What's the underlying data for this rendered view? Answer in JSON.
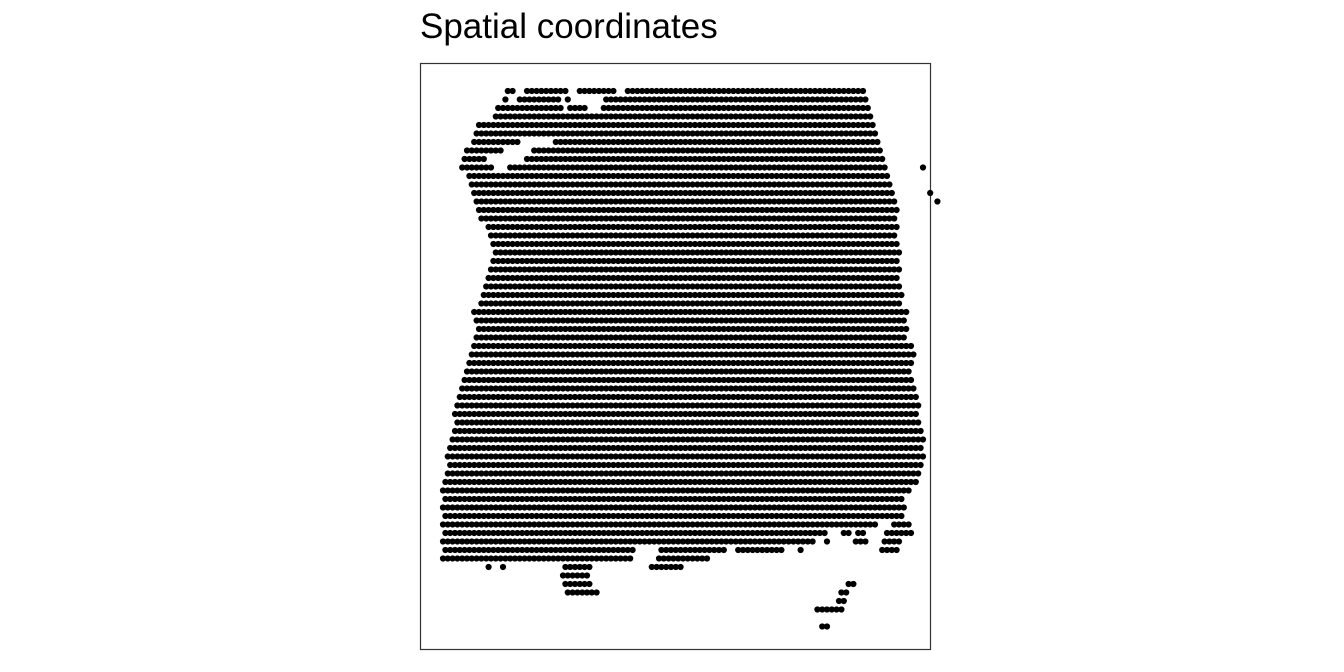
{
  "colors": {
    "point": "#000000",
    "panel_border": "#333333",
    "background": "#ffffff"
  },
  "chart_data": {
    "type": "scatter",
    "title": "Spatial coordinates",
    "xlabel": "",
    "ylabel": "",
    "axes": "none",
    "grid": false,
    "legend": "none",
    "layout": "hexagonal spot grid",
    "rows": [
      {
        "y": 0,
        "x_ranges": [
          [
            13.5,
            14.5
          ],
          [
            17.5,
            25.5
          ],
          [
            28.5,
            35.5
          ],
          [
            38.5,
            87.5
          ]
        ]
      },
      {
        "y": 1,
        "x_ranges": [
          [
            13,
            13
          ],
          [
            16,
            24
          ],
          [
            26,
            26
          ],
          [
            34,
            88
          ]
        ]
      },
      {
        "y": 2,
        "x_ranges": [
          [
            11.5,
            24.5
          ],
          [
            26.5,
            29.5
          ],
          [
            33.5,
            88.5
          ]
        ]
      },
      {
        "y": 3,
        "x_ranges": [
          [
            11,
            89
          ]
        ]
      },
      {
        "y": 4,
        "x_ranges": [
          [
            7.5,
            89.5
          ]
        ]
      },
      {
        "y": 5,
        "x_ranges": [
          [
            7,
            90
          ]
        ]
      },
      {
        "y": 6,
        "x_ranges": [
          [
            6.5,
            15.5
          ],
          [
            23.5,
            90.5
          ]
        ]
      },
      {
        "y": 7,
        "x_ranges": [
          [
            5,
            12
          ],
          [
            19,
            91
          ]
        ]
      },
      {
        "y": 8,
        "x_ranges": [
          [
            4.5,
            8.5
          ],
          [
            17.5,
            91.5
          ]
        ]
      },
      {
        "y": 9,
        "x_ranges": [
          [
            4,
            10
          ],
          [
            14,
            92
          ],
          [
            100,
            100
          ]
        ]
      },
      {
        "y": 10,
        "x_ranges": [
          [
            5.5,
            92.5
          ]
        ]
      },
      {
        "y": 11,
        "x_ranges": [
          [
            6,
            93
          ]
        ]
      },
      {
        "y": 12,
        "x_ranges": [
          [
            6.5,
            93.5
          ],
          [
            101.5,
            101.5
          ]
        ]
      },
      {
        "y": 13,
        "x_ranges": [
          [
            7,
            94
          ],
          [
            103,
            103
          ]
        ]
      },
      {
        "y": 14,
        "x_ranges": [
          [
            7.5,
            94.5
          ]
        ]
      },
      {
        "y": 15,
        "x_ranges": [
          [
            8,
            94
          ]
        ]
      },
      {
        "y": 16,
        "x_ranges": [
          [
            9.5,
            94.5
          ]
        ]
      },
      {
        "y": 17,
        "x_ranges": [
          [
            10,
            94
          ]
        ]
      },
      {
        "y": 18,
        "x_ranges": [
          [
            10.5,
            94.5
          ]
        ]
      },
      {
        "y": 19,
        "x_ranges": [
          [
            11,
            95
          ]
        ]
      },
      {
        "y": 20,
        "x_ranges": [
          [
            10.5,
            94.5
          ]
        ]
      },
      {
        "y": 21,
        "x_ranges": [
          [
            10,
            95
          ]
        ]
      },
      {
        "y": 22,
        "x_ranges": [
          [
            9.5,
            94.5
          ]
        ]
      },
      {
        "y": 23,
        "x_ranges": [
          [
            9,
            95
          ]
        ]
      },
      {
        "y": 24,
        "x_ranges": [
          [
            8.5,
            95.5
          ]
        ]
      },
      {
        "y": 25,
        "x_ranges": [
          [
            8,
            95
          ]
        ]
      },
      {
        "y": 26,
        "x_ranges": [
          [
            6.5,
            96.5
          ]
        ]
      },
      {
        "y": 27,
        "x_ranges": [
          [
            7,
            96
          ]
        ]
      },
      {
        "y": 28,
        "x_ranges": [
          [
            7.5,
            96.5
          ]
        ]
      },
      {
        "y": 29,
        "x_ranges": [
          [
            7,
            96
          ]
        ]
      },
      {
        "y": 30,
        "x_ranges": [
          [
            6.5,
            97.5
          ]
        ]
      },
      {
        "y": 31,
        "x_ranges": [
          [
            6,
            98
          ]
        ]
      },
      {
        "y": 32,
        "x_ranges": [
          [
            5.5,
            97.5
          ]
        ]
      },
      {
        "y": 33,
        "x_ranges": [
          [
            5,
            97
          ]
        ]
      },
      {
        "y": 34,
        "x_ranges": [
          [
            4.5,
            97.5
          ]
        ]
      },
      {
        "y": 35,
        "x_ranges": [
          [
            4,
            98
          ]
        ]
      },
      {
        "y": 36,
        "x_ranges": [
          [
            3.5,
            98.5
          ]
        ]
      },
      {
        "y": 37,
        "x_ranges": [
          [
            3,
            99
          ]
        ]
      },
      {
        "y": 38,
        "x_ranges": [
          [
            2.5,
            98.5
          ]
        ]
      },
      {
        "y": 39,
        "x_ranges": [
          [
            3,
            99
          ]
        ]
      },
      {
        "y": 40,
        "x_ranges": [
          [
            2.5,
            99.5
          ]
        ]
      },
      {
        "y": 41,
        "x_ranges": [
          [
            2,
            100
          ]
        ]
      },
      {
        "y": 42,
        "x_ranges": [
          [
            1.5,
            99.5
          ]
        ]
      },
      {
        "y": 43,
        "x_ranges": [
          [
            1,
            100
          ]
        ]
      },
      {
        "y": 44,
        "x_ranges": [
          [
            1.5,
            99.5
          ]
        ]
      },
      {
        "y": 45,
        "x_ranges": [
          [
            1,
            99
          ]
        ]
      },
      {
        "y": 46,
        "x_ranges": [
          [
            0.5,
            98.5
          ]
        ]
      },
      {
        "y": 47,
        "x_ranges": [
          [
            0,
            97
          ]
        ]
      },
      {
        "y": 48,
        "x_ranges": [
          [
            0.5,
            95.5
          ]
        ]
      },
      {
        "y": 49,
        "x_ranges": [
          [
            0,
            96
          ]
        ]
      },
      {
        "y": 50,
        "x_ranges": [
          [
            0.5,
            95.5
          ]
        ]
      },
      {
        "y": 51,
        "x_ranges": [
          [
            0,
            90
          ],
          [
            94,
            97
          ]
        ]
      },
      {
        "y": 52,
        "x_ranges": [
          [
            0.5,
            79.5
          ],
          [
            83.5,
            84.5
          ],
          [
            86.5,
            87.5
          ],
          [
            92.5,
            97.5
          ]
        ]
      },
      {
        "y": 53,
        "x_ranges": [
          [
            0,
            77
          ],
          [
            80,
            80
          ],
          [
            86,
            88
          ],
          [
            92,
            95
          ]
        ]
      },
      {
        "y": 54,
        "x_ranges": [
          [
            0.5,
            39.5
          ],
          [
            45.5,
            58.5
          ],
          [
            61.5,
            70.5
          ],
          [
            74.5,
            74.5
          ],
          [
            91.5,
            94.5
          ]
        ]
      },
      {
        "y": 55,
        "x_ranges": [
          [
            0,
            39
          ],
          [
            45,
            55
          ]
        ]
      },
      {
        "y": 56,
        "x_ranges": [
          [
            9.5,
            9.5
          ],
          [
            12.5,
            12.5
          ],
          [
            25.5,
            30.5
          ],
          [
            43.5,
            49.5
          ]
        ]
      },
      {
        "y": 57,
        "x_ranges": [
          [
            25,
            30
          ]
        ]
      },
      {
        "y": 58,
        "x_ranges": [
          [
            25.5,
            30.5
          ],
          [
            84.5,
            85.5
          ]
        ]
      },
      {
        "y": 59,
        "x_ranges": [
          [
            26,
            32
          ],
          [
            83,
            84
          ]
        ]
      },
      {
        "y": 60,
        "x_ranges": [
          [
            82.5,
            83.5
          ]
        ]
      },
      {
        "y": 61,
        "x_ranges": [
          [
            78,
            83
          ]
        ]
      },
      {
        "y": 62,
        "x_ranges": []
      },
      {
        "y": 63,
        "x_ranges": [
          [
            79,
            80
          ]
        ]
      }
    ]
  }
}
